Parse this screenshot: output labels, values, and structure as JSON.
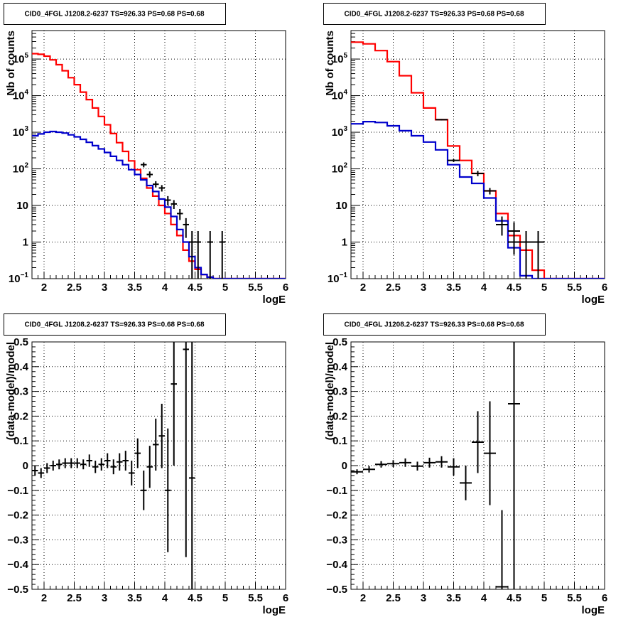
{
  "colors": {
    "data": "#000000",
    "total_model": "#ff0000",
    "source_model": "#0000cc",
    "grid": "#000000"
  },
  "chart_data": [
    {
      "type": "line",
      "title": "CID0_4FGL J1208.2-6237 TS=926.33 PS=0.68 PS=0.68",
      "xlabel": "logE",
      "ylabel": "Nb of counts",
      "ylog": true,
      "xlim": [
        1.8,
        6.0
      ],
      "ylim": [
        0.1,
        600000
      ],
      "x_ticks": [
        2,
        2.5,
        3,
        3.5,
        4,
        4.5,
        5,
        5.5,
        6
      ],
      "y_ticks": [
        {
          "v": 0.1,
          "base": "10",
          "exp": "−1"
        },
        {
          "v": 1,
          "label": "1"
        },
        {
          "v": 10,
          "label": "10"
        },
        {
          "v": 100,
          "base": "10",
          "exp": "2"
        },
        {
          "v": 1000,
          "base": "10",
          "exp": "3"
        },
        {
          "v": 10000,
          "base": "10",
          "exp": "4"
        },
        {
          "v": 100000,
          "base": "10",
          "exp": "5"
        }
      ],
      "grid": true,
      "series": [
        {
          "role": "total_model",
          "kind": "step",
          "edges": [
            1.8,
            1.9,
            2.0,
            2.1,
            2.2,
            2.3,
            2.4,
            2.5,
            2.6,
            2.7,
            2.8,
            2.9,
            3.0,
            3.1,
            3.2,
            3.3,
            3.4,
            3.5,
            3.6,
            3.7,
            3.8,
            3.9,
            4.0,
            4.1,
            4.2,
            4.3,
            4.4,
            4.5,
            4.6,
            4.7,
            4.8,
            4.9,
            5.0,
            5.1,
            5.2,
            5.3,
            5.4,
            5.5,
            5.6,
            5.7,
            5.8,
            5.9,
            6.0
          ],
          "values": [
            140000,
            135000,
            120000,
            95000,
            70000,
            48000,
            31000,
            20000,
            12500,
            7800,
            4600,
            2700,
            1600,
            920,
            520,
            300,
            165,
            95,
            55,
            30,
            18,
            10,
            6,
            3,
            1.5,
            0.6,
            0.3,
            0.18,
            0.13,
            0.11,
            0.1,
            0.1,
            0.1,
            0.1,
            0.1,
            0.1,
            0.1,
            0.1,
            0.1,
            0.1,
            0.1,
            0.1
          ]
        },
        {
          "role": "source_model",
          "kind": "step",
          "edges": [
            1.8,
            1.9,
            2.0,
            2.1,
            2.2,
            2.3,
            2.4,
            2.5,
            2.6,
            2.7,
            2.8,
            2.9,
            3.0,
            3.1,
            3.2,
            3.3,
            3.4,
            3.5,
            3.6,
            3.7,
            3.8,
            3.9,
            4.0,
            4.1,
            4.2,
            4.3,
            4.4,
            4.5,
            4.6,
            4.7,
            4.8,
            4.9,
            5.0,
            5.1,
            5.2,
            5.3,
            5.4,
            5.5,
            5.6,
            5.7,
            5.8,
            5.9,
            6.0
          ],
          "values": [
            800,
            900,
            1000,
            1050,
            1000,
            950,
            850,
            750,
            640,
            530,
            430,
            350,
            280,
            220,
            170,
            130,
            95,
            70,
            50,
            35,
            24,
            15,
            9,
            5,
            2.2,
            1.0,
            0.4,
            0.2,
            0.13,
            0.11,
            0.1,
            0.1,
            0.1,
            0.1,
            0.1,
            0.1,
            0.1,
            0.1,
            0.1,
            0.1,
            0.1,
            0.1
          ]
        },
        {
          "role": "data",
          "kind": "errorbar",
          "halfwidth": 0.05,
          "points": [
            {
              "x": 3.65,
              "y": 130,
              "lo": 110,
              "hi": 150
            },
            {
              "x": 3.75,
              "y": 70,
              "lo": 58,
              "hi": 85
            },
            {
              "x": 3.85,
              "y": 38,
              "lo": 31,
              "hi": 46
            },
            {
              "x": 3.95,
              "y": 30,
              "lo": 24,
              "hi": 36
            },
            {
              "x": 4.05,
              "y": 14,
              "lo": 10,
              "hi": 18
            },
            {
              "x": 4.15,
              "y": 11,
              "lo": 8,
              "hi": 14
            },
            {
              "x": 4.25,
              "y": 6,
              "lo": 4,
              "hi": 8
            },
            {
              "x": 4.35,
              "y": 3,
              "lo": 1.3,
              "hi": 4.5
            },
            {
              "x": 4.45,
              "y": 1,
              "lo": 0.1,
              "hi": 2
            },
            {
              "x": 4.55,
              "y": 1,
              "lo": 0.1,
              "hi": 2
            },
            {
              "x": 4.75,
              "y": 1,
              "lo": 0.1,
              "hi": 2
            },
            {
              "x": 4.95,
              "y": 1,
              "lo": 0.1,
              "hi": 2
            }
          ]
        }
      ]
    },
    {
      "type": "line",
      "title": "CID0_4FGL J1208.2-6237 TS=926.33 PS=0.68 PS=0.68",
      "xlabel": "logE",
      "ylabel": "Nb of counts",
      "ylog": true,
      "xlim": [
        1.8,
        6.0
      ],
      "ylim": [
        0.1,
        600000
      ],
      "x_ticks": [
        2,
        2.5,
        3,
        3.5,
        4,
        4.5,
        5,
        5.5,
        6
      ],
      "y_ticks": [
        {
          "v": 0.1,
          "base": "10",
          "exp": "−1"
        },
        {
          "v": 1,
          "label": "1"
        },
        {
          "v": 10,
          "label": "10"
        },
        {
          "v": 100,
          "base": "10",
          "exp": "2"
        },
        {
          "v": 1000,
          "base": "10",
          "exp": "3"
        },
        {
          "v": 10000,
          "base": "10",
          "exp": "4"
        },
        {
          "v": 100000,
          "base": "10",
          "exp": "5"
        }
      ],
      "grid": true,
      "series": [
        {
          "role": "total_model",
          "kind": "step",
          "edges": [
            1.8,
            2.0,
            2.2,
            2.4,
            2.6,
            2.8,
            3.0,
            3.2,
            3.4,
            3.6,
            3.8,
            4.0,
            4.2,
            4.4,
            4.6,
            4.8,
            5.0,
            5.2,
            5.4,
            5.6,
            5.8,
            6.0
          ],
          "values": [
            290000,
            260000,
            170000,
            85000,
            35000,
            12000,
            4600,
            2200,
            420,
            170,
            75,
            25,
            6,
            1.5,
            0.6,
            0.17,
            0.1,
            0.1,
            0.1,
            0.1,
            0.1
          ]
        },
        {
          "role": "source_model",
          "kind": "step",
          "edges": [
            1.8,
            2.0,
            2.2,
            2.4,
            2.6,
            2.8,
            3.0,
            3.2,
            3.4,
            3.6,
            3.8,
            4.0,
            4.2,
            4.4,
            4.6,
            4.8,
            5.0,
            5.2,
            5.4,
            5.6,
            5.8,
            6.0
          ],
          "values": [
            1700,
            1950,
            1850,
            1500,
            1100,
            800,
            540,
            330,
            130,
            60,
            40,
            16,
            3.8,
            0.7,
            0.12,
            0.1,
            0.1,
            0.1,
            0.1,
            0.1,
            0.1
          ]
        },
        {
          "role": "data",
          "kind": "errorbar",
          "halfwidth": 0.1,
          "points": [
            {
              "x": 3.3,
              "y": 2200,
              "lo": 2100,
              "hi": 2300
            },
            {
              "x": 3.5,
              "y": 170,
              "lo": 155,
              "hi": 185
            },
            {
              "x": 3.9,
              "y": 75,
              "lo": 63,
              "hi": 88
            },
            {
              "x": 4.1,
              "y": 25,
              "lo": 20,
              "hi": 30
            },
            {
              "x": 4.3,
              "y": 3,
              "lo": 1.5,
              "hi": 5
            },
            {
              "x": 4.5,
              "y": 2,
              "lo": 0.7,
              "hi": 3.5
            },
            {
              "x": 4.5,
              "y": 1,
              "lo": 0.45,
              "hi": 2
            },
            {
              "x": 4.7,
              "y": 1,
              "lo": 0.1,
              "hi": 2
            },
            {
              "x": 4.9,
              "y": 1,
              "lo": 0.1,
              "hi": 2
            }
          ]
        }
      ]
    },
    {
      "type": "scatter",
      "title": "CID0_4FGL J1208.2-6237 TS=926.33 PS=0.68 PS=0.68",
      "xlabel": "logE",
      "ylabel": "(data-model)/model",
      "ylog": false,
      "xlim": [
        1.8,
        6.0
      ],
      "ylim": [
        -0.5,
        0.5
      ],
      "x_ticks": [
        2,
        2.5,
        3,
        3.5,
        4,
        4.5,
        5,
        5.5,
        6
      ],
      "y_ticks": [
        {
          "v": -0.5,
          "label": "−0.5"
        },
        {
          "v": -0.4,
          "label": "−0.4"
        },
        {
          "v": -0.3,
          "label": "−0.3"
        },
        {
          "v": -0.2,
          "label": "−0.2"
        },
        {
          "v": -0.1,
          "label": "−0.1"
        },
        {
          "v": 0,
          "label": "0"
        },
        {
          "v": 0.1,
          "label": "0.1"
        },
        {
          "v": 0.2,
          "label": "0.2"
        },
        {
          "v": 0.3,
          "label": "0.3"
        },
        {
          "v": 0.4,
          "label": "0.4"
        },
        {
          "v": 0.5,
          "label": "0.5"
        }
      ],
      "grid": true,
      "series": [
        {
          "role": "data",
          "kind": "errorbar",
          "halfwidth": 0.05,
          "points": [
            {
              "x": 1.85,
              "y": -0.02,
              "lo": -0.04,
              "hi": 0.0
            },
            {
              "x": 1.95,
              "y": -0.03,
              "lo": -0.05,
              "hi": -0.01
            },
            {
              "x": 2.05,
              "y": -0.01,
              "lo": -0.03,
              "hi": 0.01
            },
            {
              "x": 2.15,
              "y": 0.0,
              "lo": -0.02,
              "hi": 0.02
            },
            {
              "x": 2.25,
              "y": 0.005,
              "lo": -0.015,
              "hi": 0.025
            },
            {
              "x": 2.35,
              "y": 0.01,
              "lo": -0.01,
              "hi": 0.03
            },
            {
              "x": 2.45,
              "y": 0.01,
              "lo": -0.01,
              "hi": 0.03
            },
            {
              "x": 2.55,
              "y": 0.01,
              "lo": -0.01,
              "hi": 0.03
            },
            {
              "x": 2.65,
              "y": 0.005,
              "lo": -0.015,
              "hi": 0.025
            },
            {
              "x": 2.75,
              "y": 0.02,
              "lo": -0.005,
              "hi": 0.045
            },
            {
              "x": 2.85,
              "y": -0.005,
              "lo": -0.03,
              "hi": 0.02
            },
            {
              "x": 2.95,
              "y": 0.005,
              "lo": -0.02,
              "hi": 0.03
            },
            {
              "x": 3.05,
              "y": 0.02,
              "lo": -0.01,
              "hi": 0.05
            },
            {
              "x": 3.15,
              "y": -0.005,
              "lo": -0.035,
              "hi": 0.025
            },
            {
              "x": 3.25,
              "y": 0.015,
              "lo": -0.02,
              "hi": 0.05
            },
            {
              "x": 3.35,
              "y": 0.02,
              "lo": -0.02,
              "hi": 0.06
            },
            {
              "x": 3.45,
              "y": -0.03,
              "lo": -0.08,
              "hi": 0.02
            },
            {
              "x": 3.55,
              "y": 0.05,
              "lo": -0.01,
              "hi": 0.11
            },
            {
              "x": 3.65,
              "y": -0.1,
              "lo": -0.18,
              "hi": -0.02
            },
            {
              "x": 3.75,
              "y": -0.005,
              "lo": -0.09,
              "hi": 0.08
            },
            {
              "x": 3.85,
              "y": 0.085,
              "lo": -0.02,
              "hi": 0.19
            },
            {
              "x": 3.95,
              "y": 0.12,
              "lo": -0.01,
              "hi": 0.25
            },
            {
              "x": 4.05,
              "y": -0.1,
              "lo": -0.35,
              "hi": 0.15
            },
            {
              "x": 4.15,
              "y": 0.33,
              "lo": 0.0,
              "hi": 0.5
            },
            {
              "x": 4.35,
              "y": 0.47,
              "lo": -0.37,
              "hi": 0.5
            },
            {
              "x": 4.45,
              "y": -0.05,
              "lo": -0.5,
              "hi": 0.5
            }
          ]
        }
      ]
    },
    {
      "type": "scatter",
      "title": "CID0_4FGL J1208.2-6237 TS=926.33 PS=0.68 PS=0.68",
      "xlabel": "logE",
      "ylabel": "(data-model)/model",
      "ylog": false,
      "xlim": [
        1.8,
        6.0
      ],
      "ylim": [
        -0.5,
        0.5
      ],
      "x_ticks": [
        2,
        2.5,
        3,
        3.5,
        4,
        4.5,
        5,
        5.5,
        6
      ],
      "y_ticks": [
        {
          "v": -0.5,
          "label": "−0.5"
        },
        {
          "v": -0.4,
          "label": "−0.4"
        },
        {
          "v": -0.3,
          "label": "−0.3"
        },
        {
          "v": -0.2,
          "label": "−0.2"
        },
        {
          "v": -0.1,
          "label": "−0.1"
        },
        {
          "v": 0,
          "label": "0"
        },
        {
          "v": 0.1,
          "label": "0.1"
        },
        {
          "v": 0.2,
          "label": "0.2"
        },
        {
          "v": 0.3,
          "label": "0.3"
        },
        {
          "v": 0.4,
          "label": "0.4"
        },
        {
          "v": 0.5,
          "label": "0.5"
        }
      ],
      "grid": true,
      "series": [
        {
          "role": "data",
          "kind": "errorbar",
          "halfwidth": 0.1,
          "points": [
            {
              "x": 1.9,
              "y": -0.025,
              "lo": -0.035,
              "hi": -0.015
            },
            {
              "x": 2.1,
              "y": -0.015,
              "lo": -0.028,
              "hi": -0.002
            },
            {
              "x": 2.3,
              "y": 0.005,
              "lo": -0.008,
              "hi": 0.018
            },
            {
              "x": 2.5,
              "y": 0.008,
              "lo": -0.006,
              "hi": 0.022
            },
            {
              "x": 2.7,
              "y": 0.012,
              "lo": -0.005,
              "hi": 0.029
            },
            {
              "x": 2.9,
              "y": -0.002,
              "lo": -0.02,
              "hi": 0.016
            },
            {
              "x": 3.1,
              "y": 0.012,
              "lo": -0.008,
              "hi": 0.032
            },
            {
              "x": 3.3,
              "y": 0.015,
              "lo": -0.008,
              "hi": 0.038
            },
            {
              "x": 3.5,
              "y": -0.005,
              "lo": -0.04,
              "hi": 0.03
            },
            {
              "x": 3.7,
              "y": -0.07,
              "lo": -0.14,
              "hi": 0.0
            },
            {
              "x": 3.9,
              "y": 0.095,
              "lo": -0.03,
              "hi": 0.22
            },
            {
              "x": 4.1,
              "y": 0.05,
              "lo": -0.16,
              "hi": 0.26
            },
            {
              "x": 4.3,
              "y": -0.49,
              "lo": -0.5,
              "hi": -0.18
            },
            {
              "x": 4.5,
              "y": 0.25,
              "lo": -0.5,
              "hi": 0.5
            }
          ]
        }
      ]
    }
  ]
}
